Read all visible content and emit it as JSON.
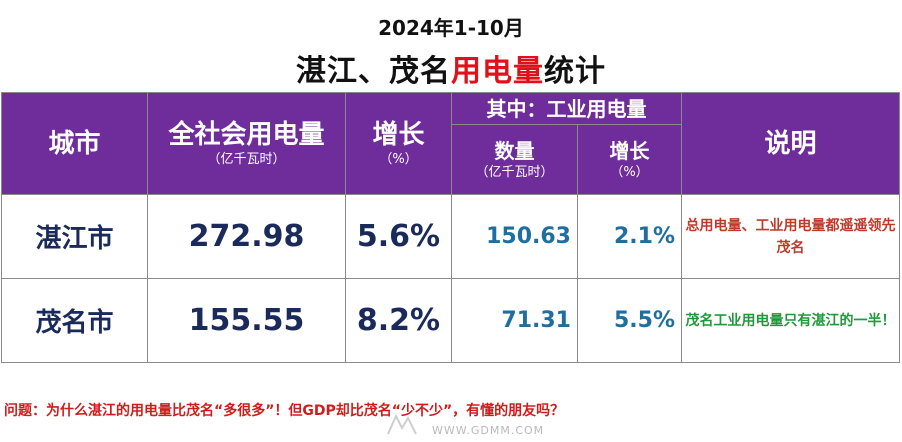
{
  "title": {
    "line1": "2024年1-10月",
    "line2_prefix": "湛江、茂名",
    "line2_highlight": "用电量",
    "line2_suffix": "统计"
  },
  "table": {
    "headers": {
      "city": "城市",
      "total": "全社会用电量",
      "total_unit": "（亿千瓦时）",
      "growth": "增长",
      "growth_unit": "（%）",
      "industrial_group": "其中：工业用电量",
      "ind_qty": "数量",
      "ind_qty_unit": "（亿千瓦时）",
      "ind_growth": "增长",
      "ind_growth_unit": "（%）",
      "note": "说明"
    },
    "rows": [
      {
        "city": "湛江市",
        "total": "272.98",
        "growth": "5.6%",
        "ind_qty": "150.63",
        "ind_growth": "2.1%",
        "note": "总用电量、工业用电量都遥遥领先茂名"
      },
      {
        "city": "茂名市",
        "total": "155.55",
        "growth": "8.2%",
        "ind_qty": "71.31",
        "ind_growth": "5.5%",
        "note": "茂名工业用电量只有湛江的一半！"
      }
    ]
  },
  "question": "问题：为什么湛江的用电量比茂名“多很多”！但GDP却比茂名“少不少”，有懂的朋友吗？",
  "watermark": "WWW.GDMM.COM",
  "colors": {
    "header_bg": "#6e2d9b",
    "highlight_red": "#e0111b",
    "note_red": "#c0392b",
    "note_green": "#1f9a3a",
    "number_blue": "#1e6f9f"
  }
}
